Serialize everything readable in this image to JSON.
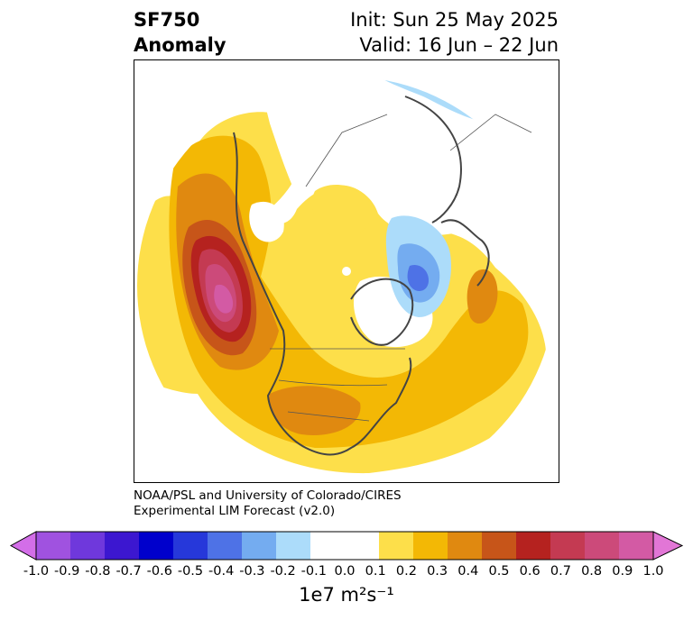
{
  "header": {
    "variable": "SF750",
    "field": "Anomaly",
    "init": "Init: Sun 25 May 2025",
    "valid": "Valid: 16 Jun – 22 Jun"
  },
  "credit": {
    "line1": "NOAA/PSL and University of Colorado/CIRES",
    "line2": "Experimental LIM Forecast (v2.0)"
  },
  "colorbar": {
    "ticks": [
      "-1.0",
      "-0.9",
      "-0.8",
      "-0.7",
      "-0.6",
      "-0.5",
      "-0.4",
      "-0.3",
      "-0.2",
      "-0.1",
      "0.0",
      "0.1",
      "0.2",
      "0.3",
      "0.4",
      "0.5",
      "0.6",
      "0.7",
      "0.8",
      "0.9",
      "1.0"
    ],
    "colors": [
      "#d36ee8",
      "#a052e0",
      "#6f38dc",
      "#3c17d0",
      "#0000cc",
      "#2638da",
      "#4e72e6",
      "#74acf0",
      "#acdcfa",
      "#ffffff",
      "#ffffff",
      "#fddf4a",
      "#f3b805",
      "#e08910",
      "#c75519",
      "#b5221f",
      "#c43a52",
      "#cc4a7a",
      "#d35aa4",
      "#e276d6"
    ],
    "units": "1e7 m²s⁻¹"
  },
  "map": {
    "projection": "north-polar-stereographic",
    "colors": {
      "light_yellow": "#fddf4a",
      "gold": "#f3b805",
      "orange": "#e08910",
      "dark_orange": "#c75519",
      "red": "#b5221f",
      "crimson": "#c43a52",
      "rose": "#cc4a7a",
      "pink": "#d35aa4",
      "light_blue": "#acdcfa",
      "mid_blue": "#74acf0",
      "blue": "#4e72e6"
    }
  }
}
